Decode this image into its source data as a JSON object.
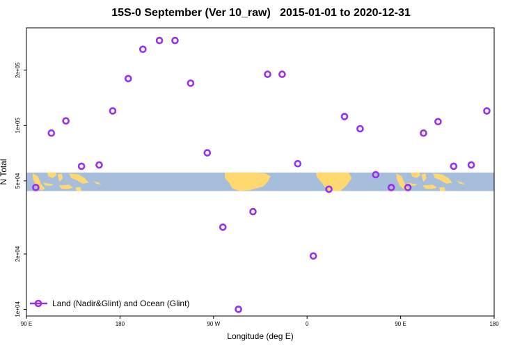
{
  "chart_data": {
    "type": "scatter",
    "title": "15S-0 September (Ver 10_raw)   2015-01-01 to 2020-12-31",
    "xlabel": "Longitude (deg E)",
    "ylabel": "N Total",
    "x_ticks": [
      {
        "value": 90,
        "label": "90 E"
      },
      {
        "value": 180,
        "label": "180"
      },
      {
        "value": 270,
        "label": "90 W"
      },
      {
        "value": 360,
        "label": "0"
      },
      {
        "value": 450,
        "label": "90 E"
      },
      {
        "value": 540,
        "label": "180"
      }
    ],
    "y_ticks": [
      {
        "value": 10000,
        "label": "1e+04"
      },
      {
        "value": 20000,
        "label": "2e+04"
      },
      {
        "value": 50000,
        "label": "5e+04"
      },
      {
        "value": 100000,
        "label": "1e+05"
      },
      {
        "value": 200000,
        "label": "2e+05"
      }
    ],
    "xlim": [
      90,
      540
    ],
    "ylim": [
      9200,
      340000
    ],
    "y_scale": "log",
    "grid": false,
    "legend_position": "bottom-left",
    "series": [
      {
        "name": "Land (Nadir&Glint) and Ocean (Glint)",
        "color": "#9b30e8",
        "marker": "open-circle",
        "points": [
          {
            "x": 99,
            "y": 46000
          },
          {
            "x": 114,
            "y": 91000
          },
          {
            "x": 128,
            "y": 106000
          },
          {
            "x": 143,
            "y": 60000
          },
          {
            "x": 160,
            "y": 61000
          },
          {
            "x": 173,
            "y": 120000
          },
          {
            "x": 188,
            "y": 180000
          },
          {
            "x": 202,
            "y": 260000
          },
          {
            "x": 218,
            "y": 290000
          },
          {
            "x": 233,
            "y": 290000
          },
          {
            "x": 248,
            "y": 170000
          },
          {
            "x": 264,
            "y": 71000
          },
          {
            "x": 279,
            "y": 28000
          },
          {
            "x": 294,
            "y": 10000
          },
          {
            "x": 308,
            "y": 34000
          },
          {
            "x": 322,
            "y": 190000
          },
          {
            "x": 336,
            "y": 190000
          },
          {
            "x": 351,
            "y": 62000
          },
          {
            "x": 366,
            "y": 19500
          },
          {
            "x": 381,
            "y": 45000
          },
          {
            "x": 396,
            "y": 112000
          },
          {
            "x": 411,
            "y": 96000
          },
          {
            "x": 426,
            "y": 54000
          },
          {
            "x": 441,
            "y": 46000
          },
          {
            "x": 457,
            "y": 46000
          },
          {
            "x": 472,
            "y": 91000
          },
          {
            "x": 486,
            "y": 105000
          },
          {
            "x": 501,
            "y": 60000
          },
          {
            "x": 518,
            "y": 61000
          },
          {
            "x": 533,
            "y": 120000
          }
        ]
      }
    ],
    "map_band": {
      "latitude_range": "15S-0",
      "ocean_color": "#a6bddb",
      "land_color": "#ffd970",
      "y_range": [
        44000,
        55500
      ]
    }
  }
}
